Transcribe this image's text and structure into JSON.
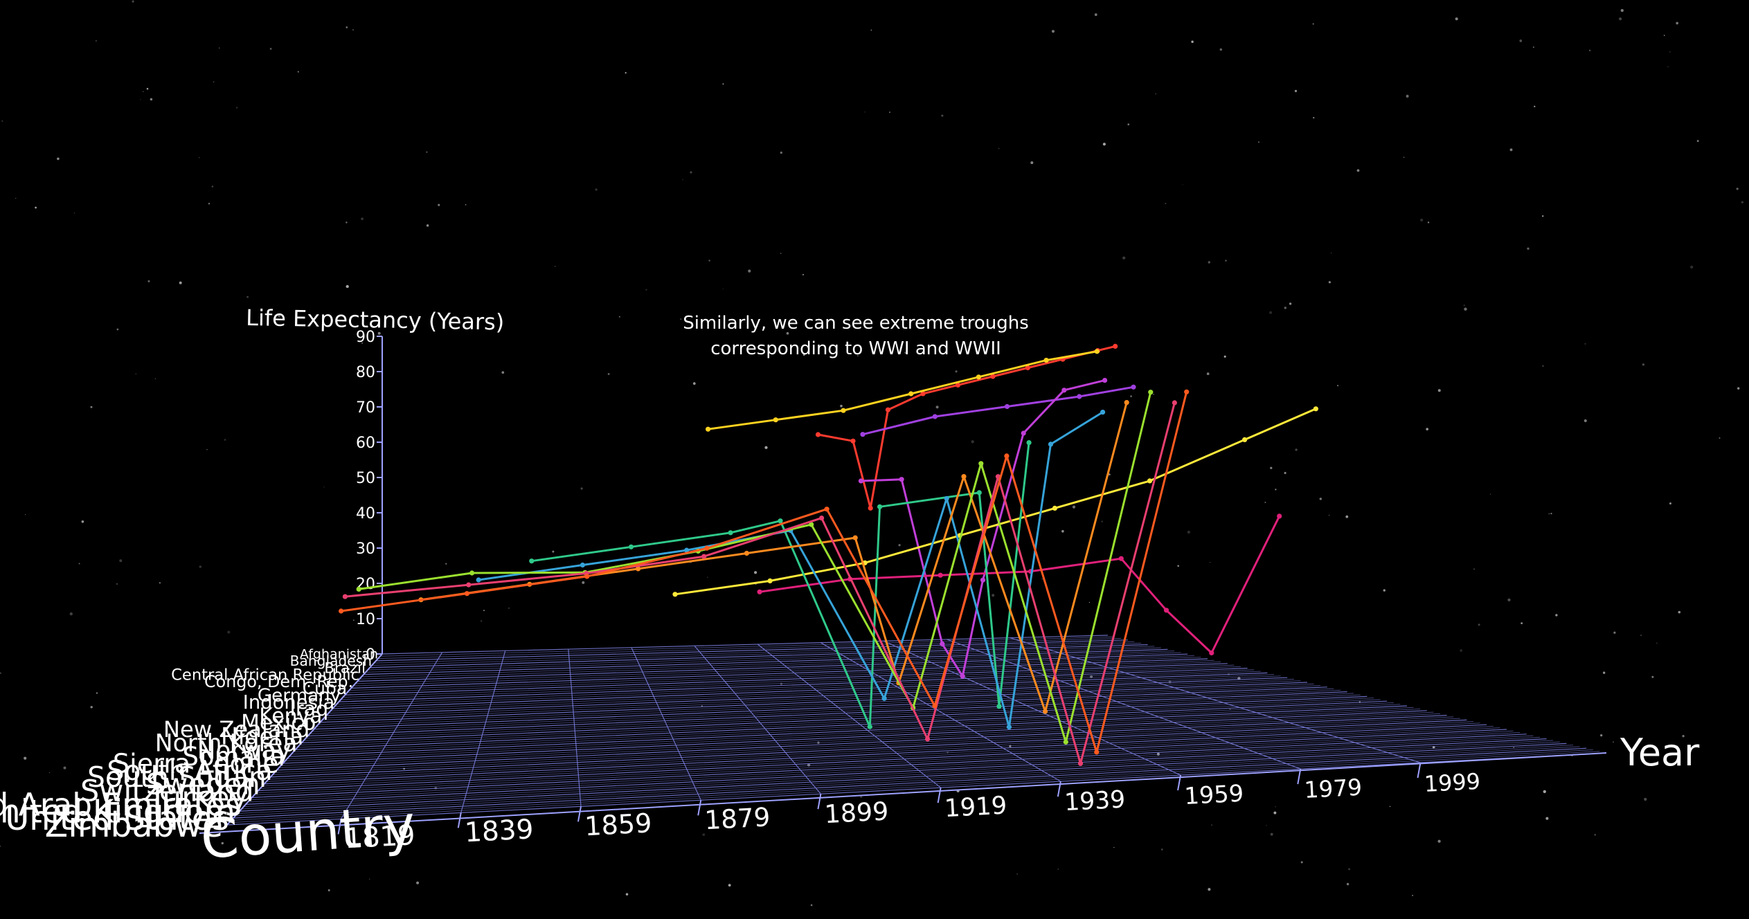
{
  "annotation": {
    "line1": "Similarly, we can see extreme troughs",
    "line2": "corresponding to WWI and WWII"
  },
  "chart_data": {
    "type": "line",
    "projection": "3d",
    "title": "",
    "xlabel": "Year",
    "ylabel": "Country",
    "zlabel": "Life Expectancy (Years)",
    "x_ticks": [
      "1819",
      "1839",
      "1859",
      "1879",
      "1899",
      "1919",
      "1939",
      "1959",
      "1979",
      "1999"
    ],
    "z_ticks": [
      "0",
      "10",
      "20",
      "30",
      "40",
      "50",
      "60",
      "70",
      "80",
      "90"
    ],
    "country_labels": [
      "Afghanistan",
      "Bangladesh",
      "Brazil",
      "Central African Republic",
      "Congo, Dem. Rep.",
      "Cuba",
      "Germany",
      "Indonesia",
      "Iraq",
      "Kenya",
      "Mexico",
      "New Zealand",
      "Nigeria",
      "North Korea",
      "Norway",
      "Somalia",
      "Sierra Leone",
      "South Africa",
      "South Sudan",
      "Sweden",
      "Switzerland",
      "Turkey",
      "United Arab Emirates",
      "United Kingdom",
      "United States",
      "Zimbabwe"
    ],
    "grid": true,
    "background": "starfield",
    "colors": {
      "background": "#000000",
      "grid": "#7b7fe0",
      "axis_line": "#9ea2ff",
      "text": "#ffffff"
    },
    "series": [
      {
        "color": "#ff3b2f",
        "x": [
          1930,
          1940,
          1945,
          1950,
          1960,
          1970,
          1980,
          1990,
          2000,
          2010,
          2015
        ],
        "y": [
          3,
          3,
          3,
          3,
          3,
          3,
          3,
          3,
          3,
          3,
          3
        ],
        "z": [
          60,
          58,
          40,
          66,
          70,
          72,
          74,
          76,
          78,
          80,
          81
        ]
      },
      {
        "color": "#ffd21f",
        "x": [
          1900,
          1920,
          1940,
          1960,
          1980,
          2000,
          2015
        ],
        "y": [
          2,
          2,
          2,
          2,
          2,
          2,
          2
        ],
        "z": [
          62,
          64,
          66,
          70,
          74,
          78,
          80
        ]
      },
      {
        "color": "#a040e0",
        "x": [
          1940,
          1960,
          1980,
          2000,
          2015
        ],
        "y": [
          4,
          4,
          4,
          4,
          4
        ],
        "z": [
          60,
          64,
          66,
          68,
          70
        ]
      },
      {
        "color": "#c03fd8",
        "x": [
          1930,
          1940,
          1950,
          1955,
          1960,
          1970,
          1980,
          1990
        ],
        "y": [
          8,
          8,
          8,
          8,
          8,
          8,
          8,
          8
        ],
        "z": [
          50,
          50,
          10,
          2,
          25,
          60,
          70,
          72
        ]
      },
      {
        "color": "#e0207a",
        "x": [
          1900,
          1920,
          1940,
          1960,
          1980,
          1990,
          2000,
          2015
        ],
        "y": [
          12,
          12,
          12,
          12,
          12,
          12,
          12,
          12
        ],
        "z": [
          28,
          30,
          30,
          30,
          32,
          20,
          10,
          40
        ]
      },
      {
        "color": "#ffe83a",
        "x": [
          1880,
          1900,
          1920,
          1940,
          1960,
          1980,
          2000,
          2015
        ],
        "y": [
          14,
          14,
          14,
          14,
          14,
          14,
          14,
          14
        ],
        "z": [
          30,
          32,
          35,
          40,
          45,
          50,
          58,
          64
        ]
      },
      {
        "color": "#2fc98a",
        "x": [
          1850,
          1870,
          1890,
          1900,
          1918,
          1920,
          1940,
          1944,
          1950
        ],
        "y": [
          16,
          16,
          16,
          16,
          16,
          16,
          16,
          16,
          16
        ],
        "z": [
          40,
          42,
          44,
          46,
          2,
          48,
          50,
          5,
          60
        ]
      },
      {
        "color": "#36a3d9",
        "x": [
          1840,
          1860,
          1880,
          1900,
          1918,
          1930,
          1942,
          1950,
          1960
        ],
        "y": [
          18,
          18,
          18,
          18,
          18,
          18,
          18,
          18,
          18
        ],
        "z": [
          38,
          40,
          42,
          45,
          10,
          50,
          3,
          60,
          66
        ]
      },
      {
        "color": "#ff8a1f",
        "x": [
          1830,
          1850,
          1870,
          1890,
          1910,
          1918,
          1930,
          1945,
          1960
        ],
        "y": [
          20,
          20,
          20,
          20,
          20,
          20,
          20,
          20,
          20
        ],
        "z": [
          36,
          38,
          40,
          42,
          44,
          15,
          55,
          8,
          68
        ]
      },
      {
        "color": "#9be02f",
        "x": [
          1820,
          1840,
          1860,
          1880,
          1900,
          1918,
          1930,
          1945,
          1960
        ],
        "y": [
          22,
          22,
          22,
          22,
          22,
          22,
          22,
          22,
          22
        ],
        "z": [
          40,
          42,
          41,
          44,
          48,
          12,
          58,
          4,
          70
        ]
      },
      {
        "color": "#e83f6f",
        "x": [
          1819,
          1840,
          1860,
          1880,
          1900,
          1918,
          1930,
          1944,
          1960
        ],
        "y": [
          24,
          24,
          24,
          24,
          24,
          24,
          24,
          24,
          24
        ],
        "z": [
          40,
          41,
          42,
          44,
          50,
          8,
          56,
          2,
          68
        ]
      },
      {
        "color": "#ff5a1f",
        "x": [
          1819,
          1840,
          1860,
          1880,
          1900,
          1918,
          1930,
          1945,
          1960
        ],
        "y": [
          25,
          25,
          25,
          25,
          25,
          25,
          25,
          25,
          25
        ],
        "z": [
          38,
          40,
          42,
          46,
          52,
          15,
          60,
          5,
          70
        ]
      }
    ]
  }
}
